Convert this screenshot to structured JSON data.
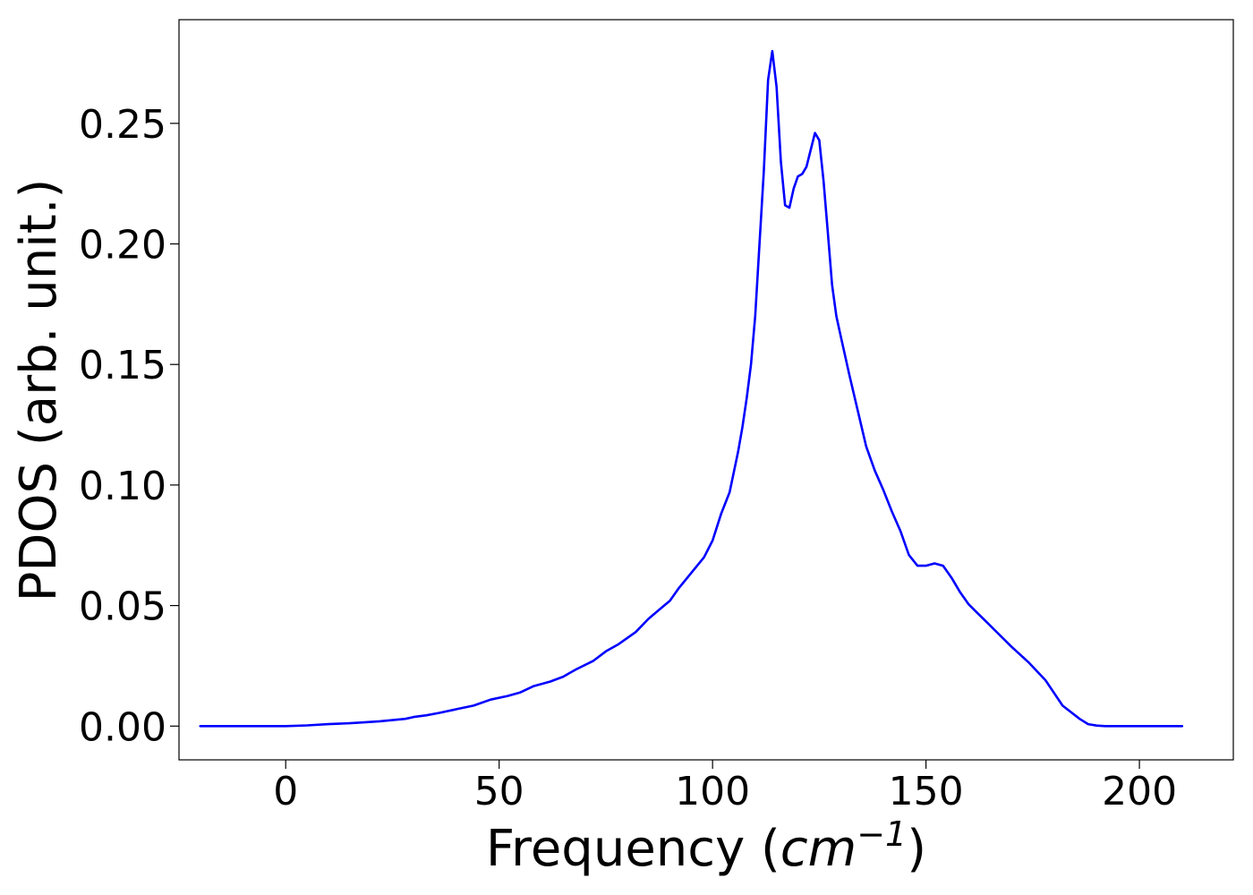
{
  "chart_data": {
    "type": "line",
    "title": "",
    "xlabel": "Frequency (cm⁻¹)",
    "xlabel_parts": {
      "prefix": "Frequency (",
      "base": "cm",
      "superscript": "−1",
      "suffix": ")"
    },
    "ylabel": "PDOS (arb. unit.)",
    "xlim": [
      -25,
      222
    ],
    "ylim": [
      -0.014,
      0.293
    ],
    "x_ticks": [
      0,
      50,
      100,
      150,
      200
    ],
    "x_tick_labels": [
      "0",
      "50",
      "100",
      "150",
      "200"
    ],
    "y_ticks": [
      0.0,
      0.05,
      0.1,
      0.15,
      0.2,
      0.25
    ],
    "y_tick_labels": [
      "0.00",
      "0.05",
      "0.10",
      "0.15",
      "0.20",
      "0.25"
    ],
    "grid": false,
    "legend": "none",
    "color": "#0000ff",
    "series": [
      {
        "x": [
          -20,
          -10,
          0,
          5,
          10,
          15,
          18,
          22,
          25,
          28,
          30,
          33,
          36,
          40,
          44,
          48,
          52,
          55,
          58,
          62,
          65,
          68,
          72,
          75,
          78,
          82,
          85,
          88,
          90,
          92,
          95,
          98,
          100,
          102,
          104,
          106,
          107,
          108,
          109,
          110,
          111,
          112,
          113,
          114,
          115,
          116,
          117,
          118,
          119,
          120,
          121,
          122,
          123,
          124,
          125,
          126,
          127,
          128,
          129,
          130,
          131,
          132,
          134,
          136,
          138,
          140,
          142,
          144,
          146,
          148,
          150,
          152,
          154,
          156,
          158,
          160,
          162,
          164,
          166,
          168,
          170,
          174,
          178,
          182,
          186,
          188,
          190,
          192,
          194,
          196,
          200,
          210
        ],
        "y": [
          0.0,
          0.0,
          0.0,
          0.0003,
          0.0008,
          0.0012,
          0.0015,
          0.002,
          0.0025,
          0.003,
          0.0038,
          0.0045,
          0.0055,
          0.007,
          0.0085,
          0.011,
          0.0125,
          0.014,
          0.0165,
          0.0185,
          0.0205,
          0.0235,
          0.027,
          0.031,
          0.034,
          0.039,
          0.0445,
          0.049,
          0.052,
          0.057,
          0.0635,
          0.07,
          0.077,
          0.088,
          0.097,
          0.114,
          0.124,
          0.136,
          0.15,
          0.17,
          0.2,
          0.23,
          0.268,
          0.28,
          0.265,
          0.234,
          0.216,
          0.215,
          0.223,
          0.228,
          0.229,
          0.232,
          0.239,
          0.246,
          0.243,
          0.226,
          0.205,
          0.183,
          0.17,
          0.162,
          0.154,
          0.146,
          0.131,
          0.116,
          0.106,
          0.098,
          0.089,
          0.081,
          0.071,
          0.0665,
          0.0665,
          0.0675,
          0.0665,
          0.0615,
          0.0555,
          0.0505,
          0.047,
          0.0435,
          0.04,
          0.0365,
          0.033,
          0.0265,
          0.019,
          0.0085,
          0.003,
          0.0008,
          0.0002,
          0.0,
          0.0,
          0.0,
          0.0,
          0.0
        ]
      }
    ]
  }
}
